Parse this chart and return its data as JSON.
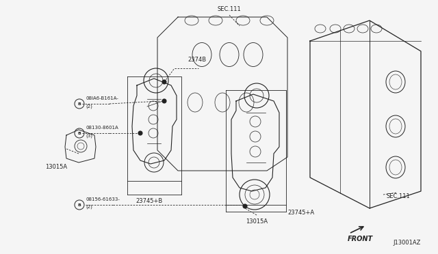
{
  "bg_color": "#f5f5f5",
  "diagram_color": "#222222",
  "fig_width": 6.4,
  "fig_height": 3.72,
  "dpi": 100,
  "labels": {
    "sec111_top": "SEC.111",
    "sec111_right": "SEC.111",
    "2374B": "2374B",
    "23745B": "23745+B",
    "23745A": "23745+A",
    "13015A_left": "13015A",
    "13015A_bottom": "13015A",
    "bolt1_text": "08IA6-B161A-",
    "bolt1_sub": "(2)",
    "bolt2_text": "08130-8601A",
    "bolt2_sub": "(3)",
    "bolt3_text": "08156-61633-",
    "bolt3_sub": "(2)",
    "front": "FRONT",
    "part_num": "J13001AZ"
  }
}
